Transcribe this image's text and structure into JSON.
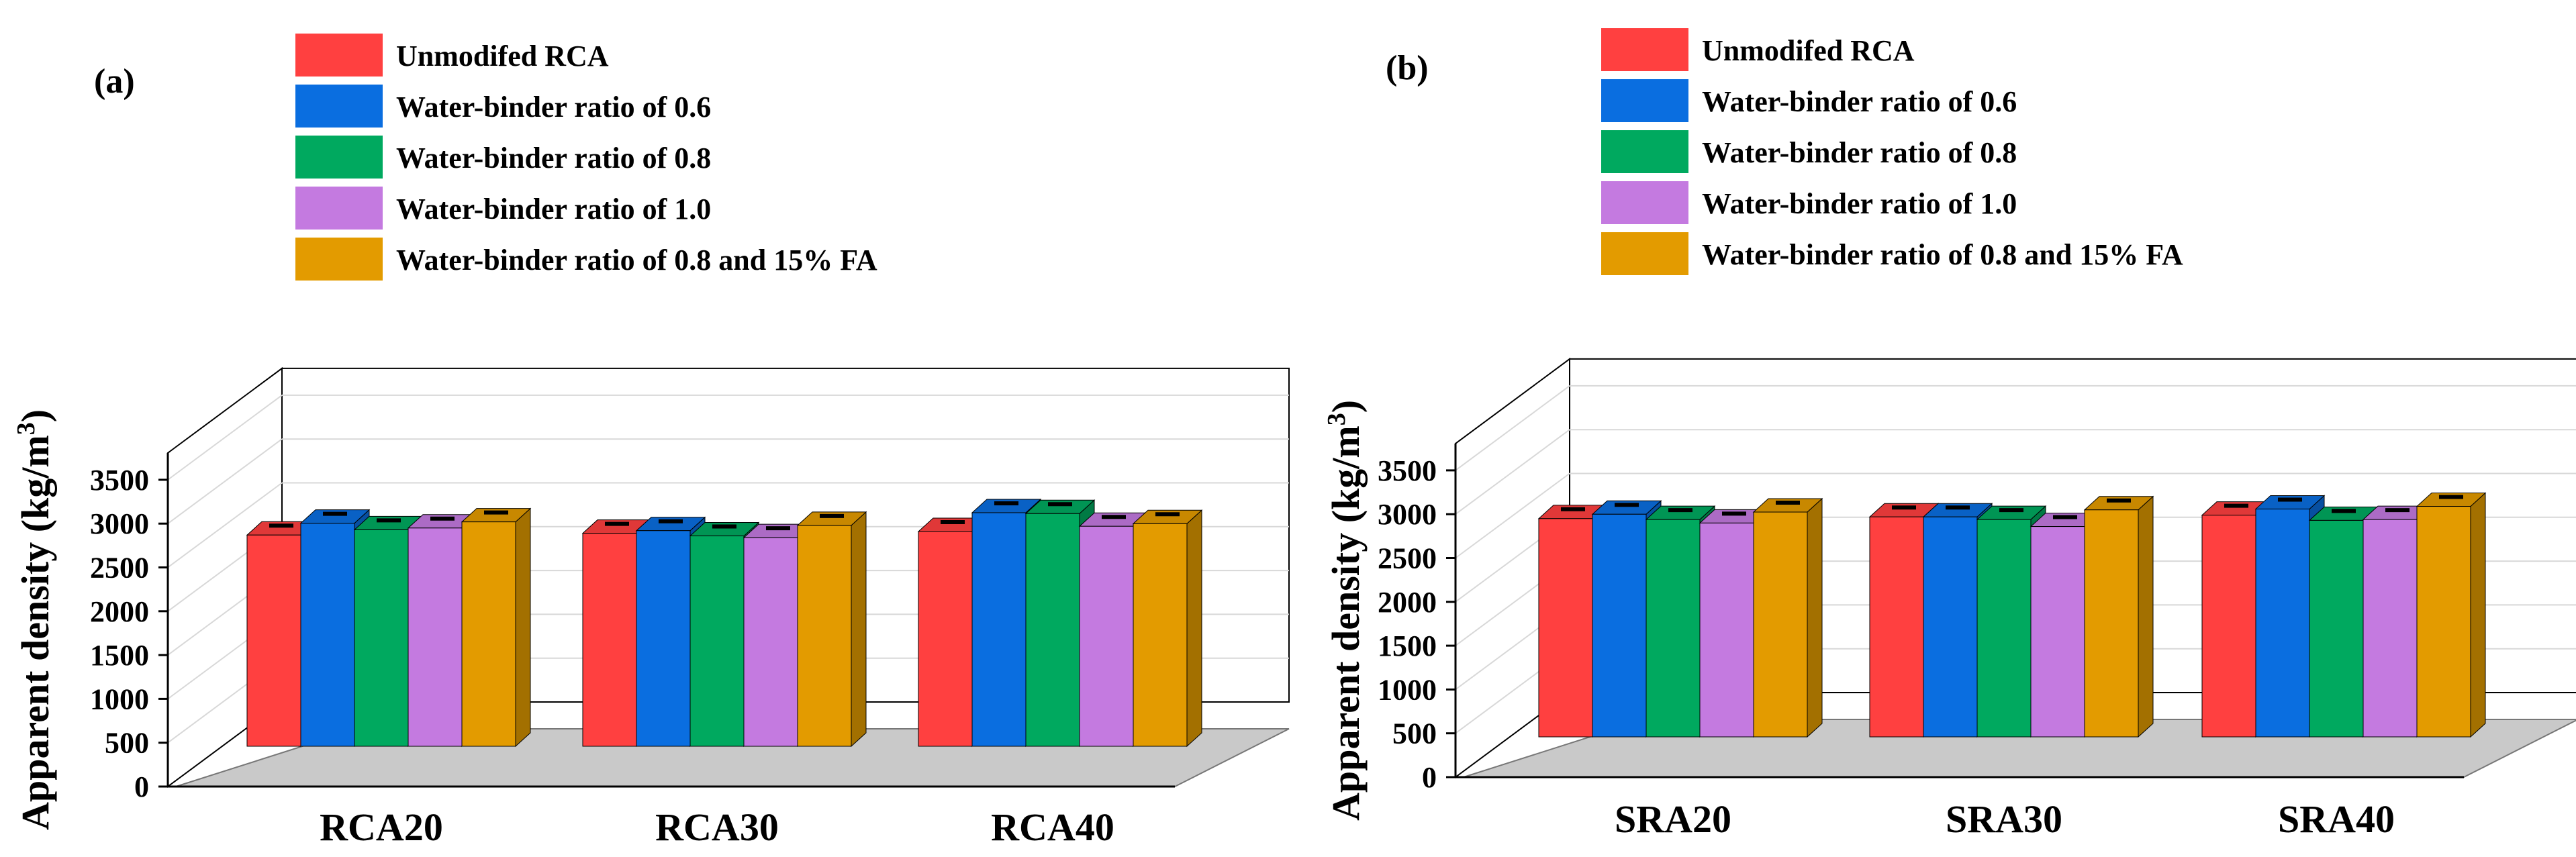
{
  "chart_data": [
    {
      "type": "bar",
      "panel_label": "(a)",
      "categories": [
        "RCA20",
        "RCA30",
        "RCA40"
      ],
      "ylabel": "Apparent density (kg/m",
      "ylabel_sup": "3",
      "ylabel_close": ")",
      "ylim": [
        0,
        3500
      ],
      "yticks": [
        "0",
        "500",
        "1000",
        "1500",
        "2000",
        "2500",
        "3000",
        "3500"
      ],
      "legend_position": "top-left",
      "series": [
        {
          "name": "Unmodifed RCA",
          "color": "#ff4040",
          "values": [
            2410,
            2430,
            2450
          ]
        },
        {
          "name": "Water-binder ratio of 0.6",
          "color": "#0a6ee0",
          "values": [
            2545,
            2460,
            2665
          ]
        },
        {
          "name": "Water-binder ratio of 0.8",
          "color": "#00a95f",
          "values": [
            2470,
            2400,
            2655
          ]
        },
        {
          "name": "Water-binder ratio of 1.0",
          "color": "#c47ae0",
          "values": [
            2490,
            2380,
            2510
          ]
        },
        {
          "name": "Water-binder ratio of 0.8 and 15% FA",
          "color": "#e39b00",
          "values": [
            2560,
            2520,
            2540
          ]
        }
      ]
    },
    {
      "type": "bar",
      "panel_label": "(b)",
      "categories": [
        "SRA20",
        "SRA30",
        "SRA40"
      ],
      "ylabel": "Apparent density (kg/m",
      "ylabel_sup": "3",
      "ylabel_close": ")",
      "ylim": [
        0,
        3500
      ],
      "yticks": [
        "0",
        "500",
        "1000",
        "1500",
        "2000",
        "2500",
        "3000",
        "3500"
      ],
      "legend_position": "top-left",
      "series": [
        {
          "name": "Unmodifed RCA",
          "color": "#ff4040",
          "values": [
            2490,
            2510,
            2530
          ]
        },
        {
          "name": "Water-binder ratio of 0.6",
          "color": "#0a6ee0",
          "values": [
            2540,
            2510,
            2600
          ]
        },
        {
          "name": "Water-binder ratio of 0.8",
          "color": "#00a95f",
          "values": [
            2480,
            2480,
            2470
          ]
        },
        {
          "name": "Water-binder ratio of 1.0",
          "color": "#c47ae0",
          "values": [
            2440,
            2400,
            2480
          ]
        },
        {
          "name": "Water-binder ratio of 0.8 and 15% FA",
          "color": "#e39b00",
          "values": [
            2565,
            2590,
            2630
          ]
        }
      ]
    }
  ]
}
